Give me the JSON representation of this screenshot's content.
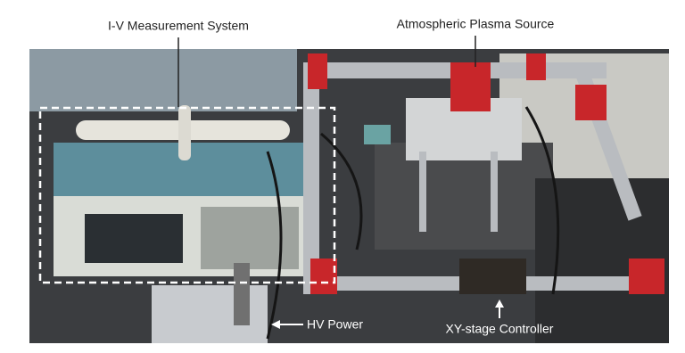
{
  "labels": [
    "I-V Measurement System",
    "Atmospheric Plasma Source",
    "HV Power",
    "XY-stage Controller"
  ]
}
